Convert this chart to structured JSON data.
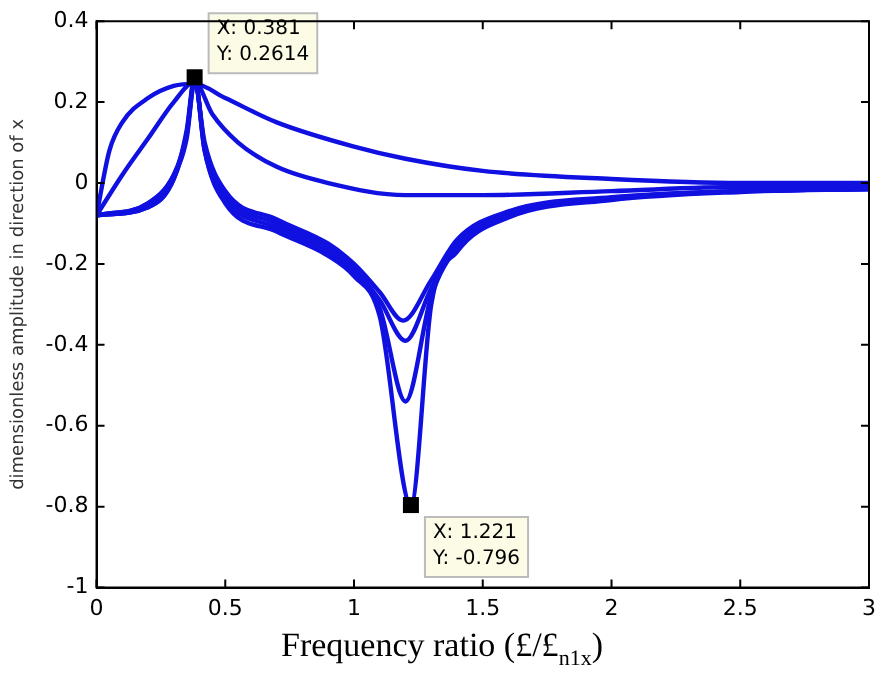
{
  "chart_data": {
    "type": "line",
    "xlabel": "Frequency ratio (£/£$_{n1x}$)",
    "ylabel": "dimensionless amplitude in direction of x",
    "xlim": [
      0,
      3
    ],
    "ylim": [
      -1,
      0.4
    ],
    "xticks": [
      0,
      0.5,
      1,
      1.5,
      2,
      2.5,
      3
    ],
    "yticks": [
      -1,
      -0.8,
      -0.6,
      -0.4,
      -0.2,
      0,
      0.2,
      0.4
    ],
    "grid": false,
    "legend": false,
    "marker": "none",
    "line_style": "solid",
    "series": [
      {
        "color": "#1010e0",
        "x": [
          0,
          0.05,
          0.1,
          0.2,
          0.3,
          0.381,
          0.5,
          0.7,
          1,
          1.2,
          1.5,
          2,
          2.5,
          3
        ],
        "values": [
          -0.08,
          0.08,
          0.15,
          0.21,
          0.24,
          0.245,
          0.21,
          0.15,
          0.09,
          0.06,
          0.03,
          0.01,
          0.0,
          0.0
        ]
      },
      {
        "color": "#1010e0",
        "x": [
          0,
          0.1,
          0.2,
          0.3,
          0.381,
          0.45,
          0.55,
          0.7,
          0.9,
          1.2,
          1.5,
          2,
          2.5,
          3
        ],
        "values": [
          -0.08,
          0.02,
          0.11,
          0.2,
          0.25,
          0.17,
          0.1,
          0.04,
          0.0,
          -0.03,
          -0.03,
          -0.02,
          -0.01,
          -0.01
        ]
      },
      {
        "color": "#1010e0",
        "x": [
          0,
          0.2,
          0.3,
          0.35,
          0.381,
          0.42,
          0.5,
          0.7,
          0.9,
          1.0,
          1.1,
          1.19,
          1.3,
          1.4,
          1.6,
          2,
          2.5,
          3
        ],
        "values": [
          -0.08,
          -0.05,
          0.02,
          0.11,
          0.25,
          0.1,
          -0.02,
          -0.09,
          -0.15,
          -0.2,
          -0.27,
          -0.34,
          -0.24,
          -0.14,
          -0.07,
          -0.035,
          -0.02,
          -0.015
        ]
      },
      {
        "color": "#1010e0",
        "x": [
          0,
          0.2,
          0.3,
          0.35,
          0.381,
          0.42,
          0.5,
          0.7,
          0.9,
          1.0,
          1.1,
          1.2,
          1.3,
          1.4,
          1.6,
          2,
          2.5,
          3
        ],
        "values": [
          -0.08,
          -0.05,
          0.02,
          0.12,
          0.255,
          0.09,
          -0.03,
          -0.1,
          -0.16,
          -0.21,
          -0.29,
          -0.39,
          -0.26,
          -0.15,
          -0.075,
          -0.037,
          -0.02,
          -0.015
        ]
      },
      {
        "color": "#1010e0",
        "x": [
          0,
          0.2,
          0.3,
          0.35,
          0.381,
          0.42,
          0.5,
          0.7,
          0.9,
          1.0,
          1.1,
          1.2,
          1.3,
          1.4,
          1.6,
          2,
          2.5,
          3
        ],
        "values": [
          -0.08,
          -0.06,
          0.01,
          0.12,
          0.258,
          0.08,
          -0.04,
          -0.11,
          -0.17,
          -0.22,
          -0.31,
          -0.54,
          -0.28,
          -0.16,
          -0.08,
          -0.04,
          -0.02,
          -0.015
        ]
      },
      {
        "color": "#1010e0",
        "x": [
          0,
          0.2,
          0.3,
          0.35,
          0.381,
          0.42,
          0.5,
          0.7,
          0.9,
          1.0,
          1.1,
          1.221,
          1.3,
          1.4,
          1.6,
          2,
          2.5,
          3
        ],
        "values": [
          -0.08,
          -0.06,
          0.01,
          0.13,
          0.2614,
          0.08,
          -0.05,
          -0.12,
          -0.18,
          -0.23,
          -0.33,
          -0.796,
          -0.3,
          -0.17,
          -0.085,
          -0.042,
          -0.022,
          -0.015
        ]
      }
    ],
    "annotations": [
      {
        "text": "X: 0.381\nY: 0.2614",
        "x": 0.381,
        "y": 0.2614
      },
      {
        "text": "X: 1.221\nY: -0.796",
        "x": 1.221,
        "y": -0.796
      }
    ]
  }
}
